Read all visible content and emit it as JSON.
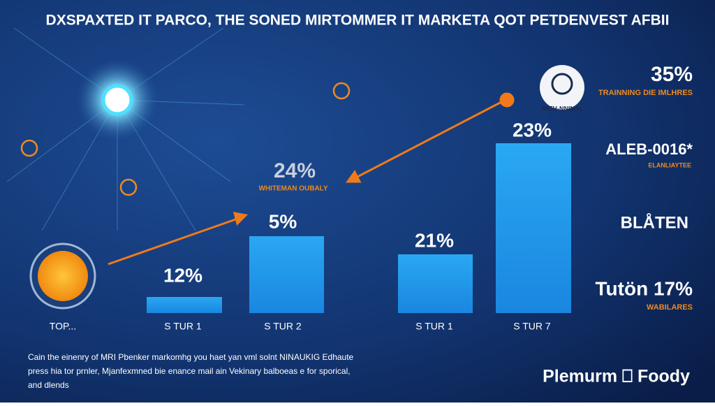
{
  "title": "DXSPAXTED IT PARCO, THE SONED MIRTOMMER IT MARKETA QOT PETDENVEST AFBII",
  "bars": [
    {
      "label": "12%",
      "caption": "S TUR 1"
    },
    {
      "label": "5%",
      "caption": "S TUR 2"
    },
    {
      "label": "21%",
      "caption": "S TUR 1"
    },
    {
      "label": "23%",
      "caption": "S TUR 7"
    }
  ],
  "left_caption": "TOP...",
  "callout": {
    "value": "24%",
    "label": "WHITEMAN OUBALY"
  },
  "icon_caption": "WITH-NNINAL",
  "side": [
    {
      "value": "35%",
      "label": "TRAINNING DIE IMLHRES"
    },
    {
      "value": "ALEB-0016*",
      "label": "ELANLIAYTEE"
    },
    {
      "value": "BLÅTEN"
    },
    {
      "value": "Tutön 17%",
      "label": "WABILARES"
    }
  ],
  "footer": [
    "Cain the einenry of MRI Pbenker markomhg you haet yan vml solnt NINAUKIG Edhaute",
    "press hia tor prnler, Mjanfexmned bie enance mail ain Vekinary balboeas e for sporical,",
    "and dlends"
  ],
  "logo": "Plemurm ⎕ Foody"
}
